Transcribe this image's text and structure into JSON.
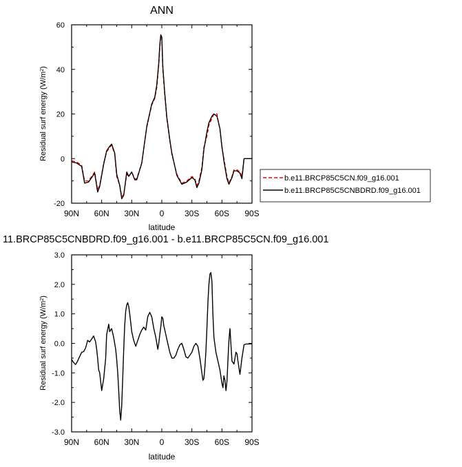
{
  "chart_data": [
    {
      "type": "line",
      "title": "ANN",
      "xlabel": "latitude",
      "ylabel": "Residual surf energy (W/m",
      "ylabel_sup": "2",
      "ylabel_tail": ")",
      "xlim": [
        90,
        -90
      ],
      "ylim": [
        -20,
        60
      ],
      "xticks": [
        90,
        60,
        30,
        0,
        -30,
        -60,
        -90
      ],
      "xtick_labels": [
        "90N",
        "60N",
        "30N",
        "0",
        "30S",
        "60S",
        "90S"
      ],
      "yticks": [
        -20,
        0,
        20,
        40,
        60
      ],
      "ytick_labels": [
        "-20",
        "0",
        "20",
        "40",
        "60"
      ],
      "grid": false,
      "legend_position": "right",
      "series": [
        {
          "name": "b.e11.BRCP85C5CN.f09_g16.001",
          "color": "#ff0000",
          "dash": "dashed",
          "x": [
            90,
            85,
            80,
            77,
            73,
            70,
            67,
            64,
            62,
            58,
            55,
            52,
            50,
            47,
            45,
            42,
            40,
            38,
            35,
            33,
            30,
            27,
            25,
            20,
            15,
            12,
            10,
            7,
            5,
            3,
            2,
            1,
            0,
            -1,
            -3,
            -5,
            -8,
            -10,
            -15,
            -20,
            -25,
            -30,
            -33,
            -35,
            -37,
            -40,
            -42,
            -45,
            -47,
            -50,
            -52,
            -55,
            -58,
            -60,
            -62,
            -65,
            -67,
            -70,
            -72,
            -75,
            -78,
            -80,
            -82,
            -85,
            -90
          ],
          "y": [
            -1,
            -1.5,
            -3,
            -10,
            -10,
            -8,
            -6,
            -14,
            -12,
            -2,
            3,
            5,
            6,
            2,
            -8,
            -12,
            -17,
            -16,
            -7,
            -8,
            -6,
            -9,
            -9,
            -2,
            14,
            20,
            24,
            27,
            32,
            42,
            50,
            55,
            54,
            40,
            28,
            18,
            8,
            2,
            -7,
            -11,
            -10,
            -8,
            -9,
            -12,
            -10,
            -4,
            5,
            10,
            15,
            18,
            20,
            20,
            13,
            5,
            0,
            -8,
            -11,
            -8,
            -5,
            -5,
            -6,
            -8,
            0,
            0,
            0
          ]
        },
        {
          "name": "b.e11.BRCP85C5CNBDRD.f09_g16.001",
          "color": "#000000",
          "dash": "solid",
          "x": [
            90,
            85,
            80,
            77,
            73,
            70,
            67,
            64,
            62,
            58,
            55,
            52,
            50,
            47,
            45,
            42,
            40,
            38,
            35,
            33,
            30,
            27,
            25,
            20,
            15,
            12,
            10,
            7,
            5,
            3,
            2,
            1,
            0,
            -1,
            -3,
            -5,
            -8,
            -10,
            -15,
            -20,
            -25,
            -30,
            -33,
            -35,
            -37,
            -40,
            -42,
            -45,
            -47,
            -50,
            -52,
            -55,
            -58,
            -60,
            -62,
            -65,
            -67,
            -70,
            -72,
            -75,
            -78,
            -80,
            -82,
            -85,
            -90
          ],
          "y": [
            -1.5,
            -2,
            -3.5,
            -11,
            -10.5,
            -8.5,
            -6.5,
            -15,
            -12.5,
            -2.5,
            3.5,
            5.5,
            6.5,
            2.5,
            -7,
            -12,
            -18,
            -16.5,
            -6,
            -8,
            -6,
            -9.5,
            -9.5,
            -2,
            14.5,
            20.5,
            24.5,
            27.5,
            33,
            43,
            51,
            55.5,
            54.5,
            41,
            29,
            18.5,
            8.5,
            2.5,
            -7.5,
            -11.5,
            -10.5,
            -8.5,
            -9.5,
            -13,
            -11,
            -5,
            4,
            12,
            16,
            19,
            20,
            19,
            13.5,
            5.5,
            -1,
            -9,
            -11.5,
            -8.5,
            -5.5,
            -5.5,
            -6.5,
            -9,
            0,
            0,
            0
          ]
        }
      ]
    },
    {
      "type": "line",
      "title": "11.BRCP85C5CNBDRD.f09_g16.001 - b.e11.BRCP85C5CN.f09_g16.001",
      "xlabel": "latitude",
      "ylabel": "Residual surf energy (W/m",
      "ylabel_sup": "2",
      "ylabel_tail": ")",
      "xlim": [
        90,
        -90
      ],
      "ylim": [
        -3,
        3
      ],
      "xticks": [
        90,
        60,
        30,
        0,
        -30,
        -60,
        -90
      ],
      "xtick_labels": [
        "90N",
        "60N",
        "30N",
        "0",
        "30S",
        "60S",
        "90S"
      ],
      "yticks": [
        -3,
        -2,
        -1,
        0,
        1,
        2,
        3
      ],
      "ytick_labels": [
        "-3.0",
        "-2.0",
        "-1.0",
        "0.0",
        "1.0",
        "2.0",
        "3.0"
      ],
      "grid": false,
      "series": [
        {
          "color": "#000000",
          "dash": "solid",
          "x": [
            90,
            88,
            86,
            84,
            82,
            80,
            78,
            76,
            74,
            72,
            70,
            68,
            66,
            65,
            64,
            63,
            62,
            60,
            58,
            56,
            55,
            53,
            52,
            50,
            48,
            46,
            45,
            44,
            43,
            42,
            41,
            40,
            39,
            38,
            37,
            36,
            35,
            34,
            33,
            32,
            31,
            30,
            28,
            26,
            24,
            22,
            20,
            18,
            16,
            14,
            12,
            10,
            8,
            6,
            4,
            3,
            2,
            1,
            0,
            -1,
            -2,
            -3,
            -4,
            -6,
            -8,
            -10,
            -12,
            -14,
            -16,
            -18,
            -20,
            -22,
            -24,
            -26,
            -28,
            -30,
            -32,
            -34,
            -36,
            -38,
            -40,
            -41,
            -42,
            -43,
            -44,
            -45,
            -46,
            -47,
            -48,
            -49,
            -50,
            -51,
            -52,
            -54,
            -56,
            -58,
            -60,
            -61,
            -62,
            -63,
            -64,
            -65,
            -66,
            -67,
            -68,
            -70,
            -72,
            -73,
            -74,
            -75,
            -76,
            -78,
            -80,
            -82,
            -84,
            -86,
            -88,
            -90
          ],
          "y": [
            -0.55,
            -0.65,
            -0.72,
            -0.6,
            -0.45,
            -0.3,
            -0.28,
            -0.15,
            0.1,
            0.05,
            0.15,
            0.25,
            0.05,
            -0.2,
            -0.5,
            -0.9,
            -1.0,
            -1.6,
            -1.2,
            -0.5,
            0.3,
            0.65,
            0.4,
            0.5,
            0.2,
            -0.2,
            -0.55,
            -1.0,
            -1.6,
            -2.3,
            -2.6,
            -2.1,
            -1.2,
            -0.2,
            0.6,
            1.1,
            1.3,
            1.38,
            1.25,
            1.0,
            0.7,
            0.4,
            0.1,
            -0.1,
            0.1,
            0.3,
            0.45,
            0.55,
            0.45,
            0.9,
            1.05,
            0.9,
            0.5,
            0.2,
            -0.2,
            0.0,
            0.3,
            0.55,
            0.9,
            0.85,
            0.6,
            0.45,
            0.3,
            0.0,
            -0.3,
            -0.5,
            -0.5,
            -0.4,
            -0.2,
            -0.05,
            0.0,
            -0.2,
            -0.45,
            -0.5,
            -0.4,
            -0.3,
            -0.1,
            0.0,
            -0.1,
            -0.5,
            -1.0,
            -1.25,
            -1.2,
            -0.8,
            -0.3,
            0.5,
            1.4,
            2.0,
            2.35,
            2.4,
            2.1,
            1.0,
            0.2,
            -0.3,
            -0.6,
            -0.9,
            -1.35,
            -1.5,
            -1.1,
            -1.25,
            -1.6,
            -1.3,
            -0.55,
            0.1,
            0.5,
            -0.6,
            -0.7,
            -0.5,
            -0.3,
            -0.35,
            -0.6,
            -1.05,
            -0.5,
            -0.05,
            -0.02,
            -0.02,
            -0.02,
            -0.01
          ]
        }
      ]
    }
  ]
}
